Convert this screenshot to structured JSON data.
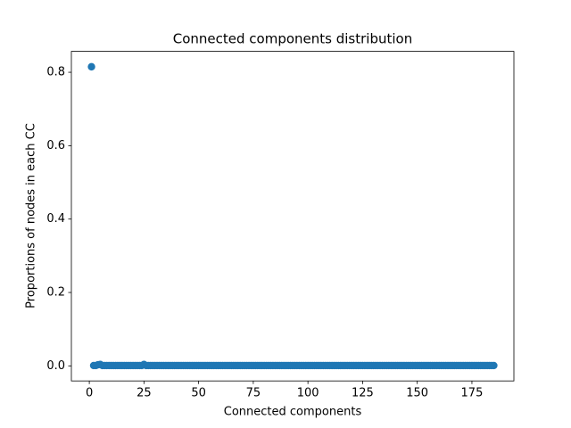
{
  "chart_data": {
    "type": "scatter",
    "title": "Connected components distribution",
    "x_label": "Connected components",
    "y_label": "Proportions of nodes in each CC",
    "color": "#1f77b4",
    "x": [
      1,
      2,
      3,
      4,
      5,
      6,
      7,
      8,
      9,
      10,
      11,
      12,
      13,
      14,
      15,
      16,
      17,
      18,
      19,
      20,
      21,
      22,
      23,
      24,
      25,
      26,
      27,
      28,
      29,
      30,
      31,
      32,
      33,
      34,
      35,
      36,
      37,
      38,
      39,
      40,
      41,
      42,
      43,
      44,
      45,
      46,
      47,
      48,
      49,
      50,
      51,
      52,
      53,
      54,
      55,
      56,
      57,
      58,
      59,
      60,
      61,
      62,
      63,
      64,
      65,
      66,
      67,
      68,
      69,
      70,
      71,
      72,
      73,
      74,
      75,
      76,
      77,
      78,
      79,
      80,
      81,
      82,
      83,
      84,
      85,
      86,
      87,
      88,
      89,
      90,
      91,
      92,
      93,
      94,
      95,
      96,
      97,
      98,
      99,
      100,
      101,
      102,
      103,
      104,
      105,
      106,
      107,
      108,
      109,
      110,
      111,
      112,
      113,
      114,
      115,
      116,
      117,
      118,
      119,
      120,
      121,
      122,
      123,
      124,
      125,
      126,
      127,
      128,
      129,
      130,
      131,
      132,
      133,
      134,
      135,
      136,
      137,
      138,
      139,
      140,
      141,
      142,
      143,
      144,
      145,
      146,
      147,
      148,
      149,
      150,
      151,
      152,
      153,
      154,
      155,
      156,
      157,
      158,
      159,
      160,
      161,
      162,
      163,
      164,
      165,
      166,
      167,
      168,
      169,
      170,
      171,
      172,
      173,
      174,
      175,
      176,
      177,
      178,
      179,
      180,
      181,
      182,
      183,
      184,
      185
    ],
    "values": [
      0.815,
      0.001,
      0.001,
      0.003,
      0.004,
      0.001,
      0.001,
      0.001,
      0.001,
      0.001,
      0.001,
      0.001,
      0.001,
      0.001,
      0.001,
      0.001,
      0.001,
      0.001,
      0.001,
      0.001,
      0.001,
      0.001,
      0.001,
      0.001,
      0.004,
      0.001,
      0.001,
      0.001,
      0.001,
      0.001,
      0.001,
      0.001,
      0.001,
      0.001,
      0.001,
      0.001,
      0.001,
      0.001,
      0.001,
      0.001,
      0.001,
      0.001,
      0.001,
      0.001,
      0.001,
      0.001,
      0.001,
      0.001,
      0.001,
      0.001,
      0.001,
      0.001,
      0.001,
      0.001,
      0.001,
      0.001,
      0.001,
      0.001,
      0.001,
      0.001,
      0.001,
      0.001,
      0.001,
      0.001,
      0.001,
      0.001,
      0.001,
      0.001,
      0.001,
      0.001,
      0.001,
      0.001,
      0.001,
      0.001,
      0.001,
      0.001,
      0.001,
      0.001,
      0.001,
      0.001,
      0.001,
      0.001,
      0.001,
      0.001,
      0.001,
      0.001,
      0.001,
      0.001,
      0.001,
      0.001,
      0.001,
      0.001,
      0.001,
      0.001,
      0.001,
      0.001,
      0.001,
      0.001,
      0.001,
      0.001,
      0.001,
      0.001,
      0.001,
      0.001,
      0.001,
      0.001,
      0.001,
      0.001,
      0.001,
      0.001,
      0.001,
      0.001,
      0.001,
      0.001,
      0.001,
      0.001,
      0.001,
      0.001,
      0.001,
      0.001,
      0.001,
      0.001,
      0.001,
      0.001,
      0.001,
      0.001,
      0.001,
      0.001,
      0.001,
      0.001,
      0.001,
      0.001,
      0.001,
      0.001,
      0.001,
      0.001,
      0.001,
      0.001,
      0.001,
      0.001,
      0.001,
      0.001,
      0.001,
      0.001,
      0.001,
      0.001,
      0.001,
      0.001,
      0.001,
      0.001,
      0.001,
      0.001,
      0.001,
      0.001,
      0.001,
      0.001,
      0.001,
      0.001,
      0.001,
      0.001,
      0.001,
      0.001,
      0.001,
      0.001,
      0.001,
      0.001,
      0.001,
      0.001,
      0.001,
      0.001,
      0.001,
      0.001,
      0.001,
      0.001,
      0.001,
      0.001,
      0.001,
      0.001,
      0.001,
      0.001,
      0.001,
      0.001,
      0.001,
      0.001,
      0.001
    ],
    "xlim": [
      -8.2,
      194.2
    ],
    "xticks": [
      0,
      25,
      50,
      75,
      100,
      125,
      150,
      175
    ],
    "ylim": [
      -0.041,
      0.857
    ],
    "yticks": [
      {
        "value": 0,
        "label": "0.0"
      },
      0.2,
      0.4,
      0.6,
      0.8
    ],
    "grid": false
  }
}
